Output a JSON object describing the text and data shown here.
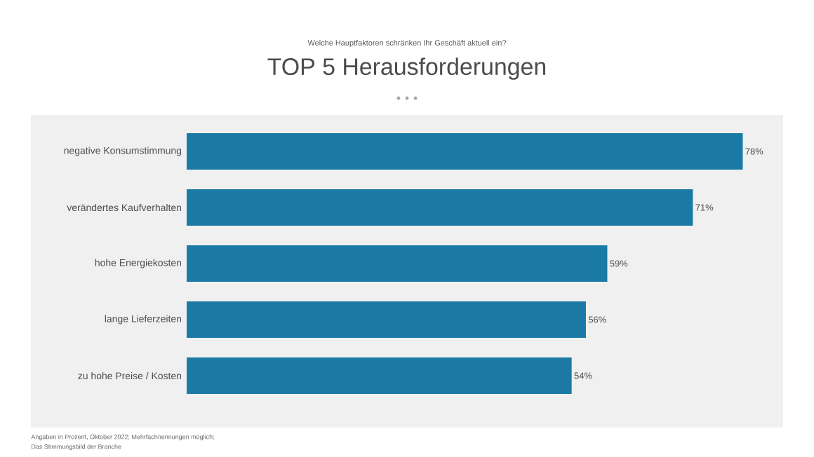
{
  "chart_data": {
    "type": "bar",
    "orientation": "horizontal",
    "title": "TOP 5 Herausforderungen",
    "subtitle": "Welche Hauptfaktoren schränken Ihr Geschäft aktuell ein?",
    "categories": [
      "negative Konsumstimmung",
      "verändertes Kaufverhalten",
      "hohe Energiekosten",
      "lange Lieferzeiten",
      "zu hohe Preise / Kosten"
    ],
    "values": [
      78,
      71,
      59,
      56,
      54
    ],
    "value_labels": [
      "78%",
      "71%",
      "59%",
      "56%",
      "54%"
    ],
    "color": "#1b7aa5",
    "annotations": [
      "Angaben in Prozent, Oktober 2022; Mehrfachnennungen möglich;",
      "Das Stimmungsbild der Branche"
    ]
  }
}
